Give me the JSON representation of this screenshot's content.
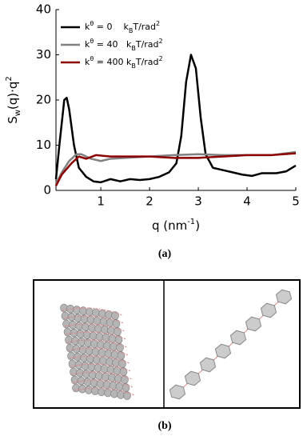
{
  "chart_data": {
    "type": "line",
    "y_label": [
      "S",
      "w",
      "(q)·q",
      "2"
    ],
    "x_label": [
      "q (nm",
      "-1",
      ")"
    ],
    "xlim": [
      0.08,
      5
    ],
    "ylim": [
      0,
      40
    ],
    "xticks": [
      1,
      2,
      3,
      4,
      5
    ],
    "yticks": [
      0,
      10,
      20,
      30,
      40
    ],
    "legend": "upper left",
    "series": [
      {
        "name": [
          "k",
          "θ",
          " = 0    ",
          "k",
          "B",
          "T/rad",
          "2"
        ],
        "color": "#000000",
        "x": [
          0.08,
          0.15,
          0.25,
          0.3,
          0.35,
          0.45,
          0.55,
          0.7,
          0.85,
          1.0,
          1.2,
          1.4,
          1.6,
          1.8,
          2.0,
          2.2,
          2.4,
          2.55,
          2.65,
          2.75,
          2.85,
          2.95,
          3.05,
          3.15,
          3.3,
          3.5,
          3.7,
          3.9,
          4.1,
          4.3,
          4.6,
          4.8,
          5.0
        ],
        "values": [
          2.5,
          10,
          20,
          20.5,
          18,
          10,
          5,
          3,
          2,
          1.8,
          2.5,
          2,
          2.5,
          2.3,
          2.5,
          3,
          4,
          6,
          12,
          24,
          30,
          27,
          16,
          8,
          5,
          4.5,
          4,
          3.5,
          3.2,
          3.8,
          3.8,
          4.2,
          5.5
        ]
      },
      {
        "name": [
          "k",
          "θ",
          " = 40   ",
          "k",
          "B",
          "T/rad",
          "2"
        ],
        "color": "#808080",
        "x": [
          0.08,
          0.2,
          0.35,
          0.5,
          0.6,
          0.8,
          1.0,
          1.2,
          1.5,
          2.0,
          2.5,
          3.0,
          3.5,
          4.0,
          4.5,
          5.0
        ],
        "values": [
          1.5,
          4,
          6.5,
          8,
          8,
          7,
          6.5,
          7,
          7.2,
          7.5,
          7.8,
          8,
          7.8,
          7.8,
          7.8,
          8.5
        ]
      },
      {
        "name": [
          "k",
          "θ",
          " = 400 ",
          "k",
          "B",
          "T/rad",
          "2"
        ],
        "color": "#8b0000",
        "x": [
          0.08,
          0.2,
          0.4,
          0.55,
          0.7,
          0.9,
          1.2,
          1.5,
          2.0,
          2.5,
          3.0,
          3.5,
          4.0,
          4.5,
          5.0
        ],
        "values": [
          1,
          3.5,
          6,
          7.5,
          7,
          7.8,
          7.5,
          7.5,
          7.5,
          7.2,
          7.2,
          7.5,
          7.8,
          7.8,
          8.2
        ]
      }
    ]
  },
  "captions": [
    "(a)",
    "(b)"
  ]
}
